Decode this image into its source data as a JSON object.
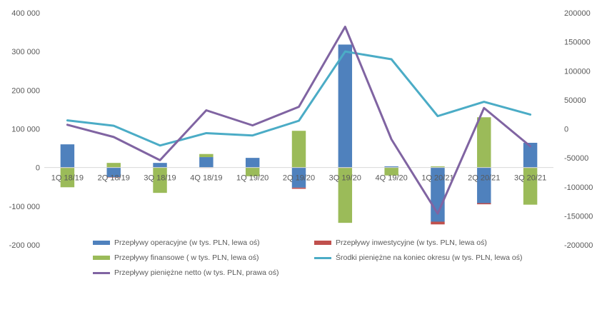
{
  "chart_data": {
    "type": "bar",
    "title": "",
    "categories": [
      "1Q 18/19",
      "2Q 18/19",
      "3Q 18/19",
      "4Q 18/19",
      "1Q 19/20",
      "2Q 19/20",
      "3Q 19/20",
      "4Q 19/20",
      "1Q 20/21",
      "2Q 20/21",
      "3Q 20/21"
    ],
    "series": [
      {
        "name": "Przepływy operacyjne (w tys. PLN, lewa oś)",
        "kind": "bar",
        "axis": "left",
        "color": "#4F81BD",
        "values": [
          60000,
          -25000,
          12000,
          27000,
          25000,
          -52000,
          318000,
          3000,
          -140000,
          -92000,
          64000
        ]
      },
      {
        "name": "Przepływy inwestycyjne (w tys. PLN, lewa oś)",
        "kind": "bar",
        "axis": "left",
        "color": "#C0504D",
        "values": [
          -1000,
          -500,
          -500,
          -500,
          -500,
          -3000,
          -1000,
          -500,
          -7000,
          -3000,
          -1000
        ]
      },
      {
        "name": "Przepływy finansowe ( w tys. PLN, lewa oś)",
        "kind": "bar",
        "axis": "left",
        "color": "#9BBB59",
        "values": [
          -50000,
          12000,
          -65000,
          8000,
          -22000,
          95000,
          -142000,
          -20000,
          3000,
          130000,
          -95000
        ]
      },
      {
        "name": "Środki pieniężne na koniec okresu (w tys. PLN, lewa oś)",
        "kind": "line",
        "axis": "left",
        "color": "#4BACC6",
        "values": [
          122000,
          108000,
          57000,
          89000,
          83000,
          121000,
          300000,
          280000,
          133000,
          170000,
          137000
        ]
      },
      {
        "name": "Przepływy pieniężne netto (w tys. PLN, prawa oś)",
        "kind": "line",
        "axis": "right",
        "color": "#8064A2",
        "values": [
          7000,
          -14000,
          -54000,
          32000,
          6000,
          38000,
          176000,
          -18000,
          -146000,
          36000,
          -30000
        ]
      }
    ],
    "y_left": {
      "min": -200000,
      "max": 400000,
      "ticks": [
        "-200 000",
        "-100 000",
        "0",
        "100 000",
        "200 000",
        "300 000",
        "400 000"
      ]
    },
    "y_right": {
      "min": -200000,
      "max": 200000,
      "ticks": [
        "-200000",
        "-150000",
        "-100000",
        "-50000",
        "0",
        "50000",
        "100000",
        "150000",
        "200000"
      ]
    },
    "grid": false,
    "legend_position": "bottom"
  }
}
